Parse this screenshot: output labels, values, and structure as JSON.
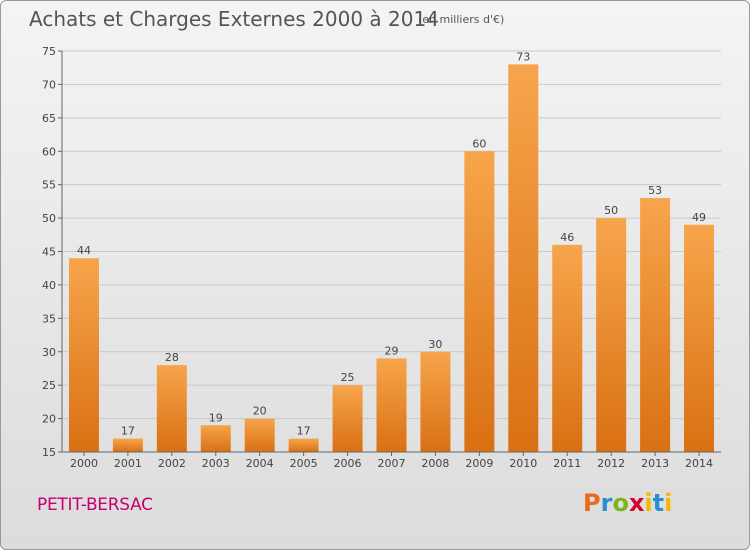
{
  "title": "Achats et Charges Externes 2000 à 2014",
  "unit_label": "(en milliers d'€)",
  "commune": "PETIT-BERSAC",
  "logo": {
    "text": "Proxiti",
    "letters": [
      "P",
      "r",
      "o",
      "x",
      "i",
      "t",
      "i"
    ]
  },
  "colors": {
    "bar_top": "#f7a54c",
    "bar_bottom": "#d97013",
    "title": "#555555",
    "commune": "#c8006e"
  },
  "chart_data": {
    "type": "bar",
    "categories": [
      "2000",
      "2001",
      "2002",
      "2003",
      "2004",
      "2005",
      "2006",
      "2007",
      "2008",
      "2009",
      "2010",
      "2011",
      "2012",
      "2013",
      "2014"
    ],
    "values": [
      44,
      17,
      28,
      19,
      20,
      17,
      25,
      29,
      30,
      60,
      73,
      46,
      50,
      53,
      49
    ],
    "ylim": [
      15,
      75
    ],
    "yticks": [
      15,
      20,
      25,
      30,
      35,
      40,
      45,
      50,
      55,
      60,
      65,
      70,
      75
    ],
    "grid": true,
    "xlabel": "",
    "ylabel": ""
  }
}
